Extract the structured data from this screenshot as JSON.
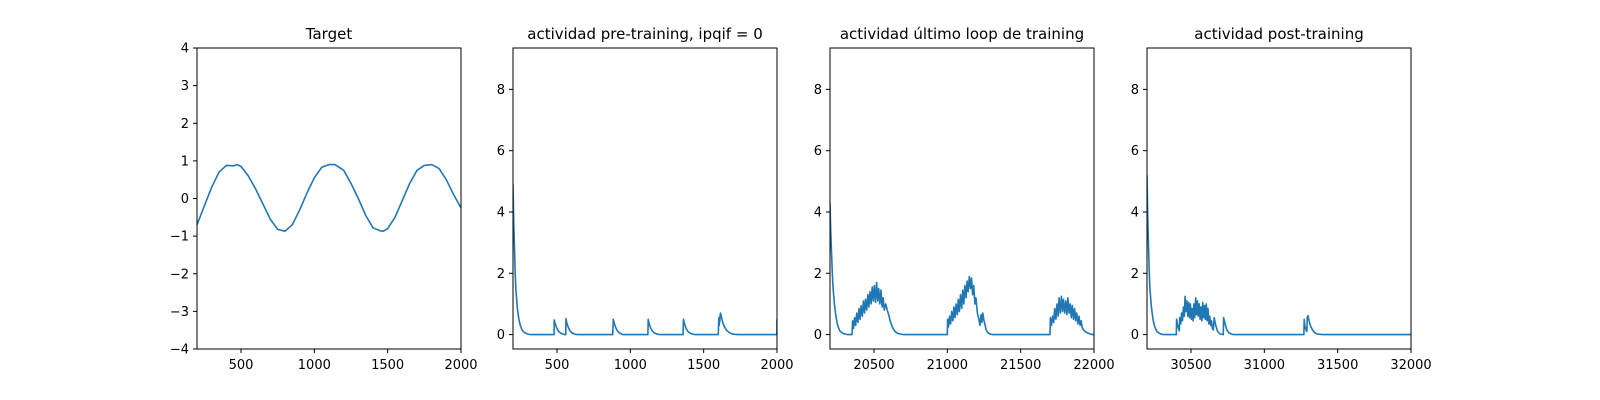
{
  "chart_data": [
    {
      "type": "line",
      "title": "Target",
      "xlabel": "",
      "ylabel": "",
      "xlim": [
        200,
        2000
      ],
      "ylim": [
        -4,
        4
      ],
      "xticks": [
        500,
        1000,
        1500,
        2000
      ],
      "yticks": [
        -4,
        -3,
        -2,
        -1,
        0,
        1,
        2,
        3,
        4
      ],
      "grid": false,
      "series": [
        {
          "color": "#1f77b4",
          "x": [
            200,
            250,
            300,
            350,
            400,
            450,
            475,
            500,
            550,
            600,
            650,
            700,
            750,
            800,
            850,
            900,
            950,
            1000,
            1050,
            1100,
            1140,
            1200,
            1250,
            1300,
            1350,
            1400,
            1450,
            1470,
            1500,
            1550,
            1600,
            1650,
            1700,
            1750,
            1800,
            1850,
            1900,
            1950,
            2000
          ],
          "y": [
            -0.7,
            -0.2,
            0.3,
            0.7,
            0.88,
            0.87,
            0.9,
            0.85,
            0.6,
            0.25,
            -0.15,
            -0.55,
            -0.82,
            -0.87,
            -0.7,
            -0.3,
            0.15,
            0.55,
            0.83,
            0.9,
            0.9,
            0.75,
            0.4,
            0.0,
            -0.45,
            -0.78,
            -0.86,
            -0.87,
            -0.8,
            -0.5,
            -0.05,
            0.4,
            0.75,
            0.88,
            0.9,
            0.8,
            0.5,
            0.1,
            -0.25
          ]
        }
      ]
    },
    {
      "type": "line",
      "title": "actividad pre-training, ipqif = 0",
      "xlabel": "",
      "ylabel": "",
      "xlim": [
        200,
        2000
      ],
      "ylim": [
        -0.47,
        9.35
      ],
      "xticks": [
        500,
        1000,
        1500,
        2000
      ],
      "yticks": [
        0,
        2,
        4,
        6,
        8
      ],
      "grid": false,
      "series": [
        {
          "color": "#1f77b4",
          "x": [
            200,
            205,
            210,
            215,
            220,
            230,
            240,
            250,
            260,
            270,
            285,
            300,
            320,
            350,
            480,
            481,
            485,
            495,
            505,
            515,
            530,
            545,
            550,
            560,
            561,
            565,
            575,
            585,
            600,
            620,
            640,
            880,
            884,
            888,
            895,
            905,
            915,
            930,
            950,
            1120,
            1122,
            1125,
            1132,
            1140,
            1150,
            1160,
            1175,
            1200,
            1360,
            1362,
            1366,
            1373,
            1380,
            1390,
            1400,
            1415,
            1440,
            1600,
            1603,
            1605,
            1610,
            1612,
            1615,
            1622,
            1630,
            1640,
            1655,
            1670,
            1690,
            1710,
            1740,
            1999,
            2000
          ],
          "y": [
            4.9,
            3.7,
            2.8,
            2.0,
            1.45,
            0.85,
            0.5,
            0.3,
            0.17,
            0.1,
            0.05,
            0.02,
            0.0,
            0.0,
            0.0,
            0.48,
            0.4,
            0.25,
            0.15,
            0.08,
            0.04,
            0.01,
            0.0,
            0.0,
            0.52,
            0.42,
            0.26,
            0.15,
            0.06,
            0.02,
            0.0,
            0.0,
            0.5,
            0.42,
            0.3,
            0.18,
            0.1,
            0.04,
            0.0,
            0.0,
            0.5,
            0.42,
            0.3,
            0.2,
            0.12,
            0.07,
            0.03,
            0.0,
            0.0,
            0.5,
            0.42,
            0.3,
            0.2,
            0.12,
            0.07,
            0.03,
            0.0,
            0.0,
            0.55,
            0.3,
            0.45,
            0.62,
            0.7,
            0.55,
            0.4,
            0.27,
            0.15,
            0.08,
            0.03,
            0.01,
            0.0,
            0.0,
            0.5
          ]
        }
      ]
    },
    {
      "type": "line",
      "title": "actividad último loop de training",
      "xlabel": "",
      "ylabel": "",
      "xlim": [
        20200,
        22000
      ],
      "ylim": [
        -0.47,
        9.35
      ],
      "xticks": [
        20500,
        21000,
        21500,
        22000
      ],
      "yticks": [
        0,
        2,
        4,
        6,
        8
      ],
      "grid": false,
      "series": [
        {
          "color": "#1f77b4",
          "x": [
            20200,
            20205,
            20210,
            20215,
            20220,
            20230,
            20240,
            20250,
            20260,
            20270,
            20285,
            20300,
            20320,
            20340,
            20350,
            20354,
            20360,
            20368,
            20375,
            20382,
            20390,
            20398,
            20405,
            20412,
            20420,
            20428,
            20435,
            20442,
            20450,
            20458,
            20465,
            20472,
            20480,
            20488,
            20495,
            20502,
            20510,
            20518,
            20525,
            20532,
            20540,
            20548,
            20555,
            20562,
            20570,
            20580,
            20590,
            20600,
            20610,
            20625,
            20640,
            20660,
            20700,
            20990,
            21000,
            21002,
            21008,
            21015,
            21022,
            21030,
            21038,
            21045,
            21052,
            21060,
            21068,
            21075,
            21082,
            21090,
            21098,
            21105,
            21112,
            21120,
            21128,
            21135,
            21142,
            21150,
            21158,
            21165,
            21172,
            21180,
            21188,
            21195,
            21205,
            21215,
            21222,
            21230,
            21236,
            21242,
            21250,
            21258,
            21265,
            21275,
            21290,
            21310,
            21350,
            21690,
            21700,
            21703,
            21710,
            21718,
            21725,
            21732,
            21740,
            21748,
            21755,
            21762,
            21770,
            21778,
            21785,
            21792,
            21800,
            21808,
            21815,
            21822,
            21830,
            21838,
            21845,
            21852,
            21860,
            21868,
            21875,
            21882,
            21890,
            21898,
            21905,
            21912,
            21920,
            21930,
            21945,
            21960,
            21975,
            21990,
            22000
          ],
          "y": [
            4.3,
            3.4,
            2.7,
            2.1,
            1.6,
            1.0,
            0.6,
            0.35,
            0.2,
            0.1,
            0.05,
            0.02,
            0.0,
            0.0,
            0.0,
            0.45,
            0.2,
            0.55,
            0.3,
            0.7,
            0.4,
            0.85,
            0.5,
            0.95,
            0.6,
            1.1,
            0.7,
            1.15,
            0.8,
            1.3,
            0.9,
            1.4,
            1.0,
            1.55,
            1.1,
            1.6,
            1.05,
            1.7,
            1.1,
            1.5,
            1.0,
            1.45,
            0.9,
            1.2,
            0.8,
            1.0,
            0.8,
            0.65,
            0.45,
            0.25,
            0.12,
            0.04,
            0.0,
            0.0,
            0.0,
            0.5,
            0.25,
            0.6,
            0.35,
            0.75,
            0.45,
            0.9,
            0.55,
            1.0,
            0.65,
            1.15,
            0.75,
            1.3,
            0.85,
            1.45,
            1.0,
            1.6,
            1.2,
            1.75,
            1.4,
            1.9,
            1.5,
            1.85,
            1.3,
            1.6,
            1.0,
            1.2,
            0.7,
            0.5,
            0.3,
            0.65,
            0.4,
            0.7,
            0.45,
            0.3,
            0.15,
            0.07,
            0.02,
            0.0,
            0.0,
            0.0,
            0.0,
            0.55,
            0.3,
            0.6,
            0.4,
            0.85,
            0.5,
            1.0,
            0.6,
            1.2,
            0.7,
            1.25,
            0.75,
            1.15,
            0.7,
            1.1,
            0.65,
            1.2,
            0.7,
            1.0,
            0.55,
            0.95,
            0.5,
            0.85,
            0.45,
            0.7,
            0.35,
            0.6,
            0.3,
            0.45,
            0.22,
            0.15,
            0.08,
            0.05,
            0.02,
            0.0,
            0.0
          ]
        }
      ]
    },
    {
      "type": "line",
      "title": "actividad post-training",
      "xlabel": "",
      "ylabel": "",
      "xlim": [
        30200,
        32000
      ],
      "ylim": [
        -0.47,
        9.35
      ],
      "xticks": [
        30500,
        31000,
        31500,
        32000
      ],
      "yticks": [
        0,
        2,
        4,
        6,
        8
      ],
      "grid": false,
      "series": [
        {
          "color": "#1f77b4",
          "x": [
            30200,
            30205,
            30210,
            30215,
            30220,
            30230,
            30240,
            30250,
            30260,
            30270,
            30285,
            30300,
            30320,
            30340,
            30400,
            30402,
            30407,
            30414,
            30420,
            30423,
            30430,
            30436,
            30442,
            30448,
            30454,
            30460,
            30466,
            30472,
            30478,
            30484,
            30490,
            30496,
            30502,
            30508,
            30514,
            30520,
            30526,
            30532,
            30538,
            30544,
            30550,
            30556,
            30562,
            30568,
            30574,
            30580,
            30586,
            30592,
            30598,
            30604,
            30610,
            30616,
            30622,
            30628,
            30634,
            30640,
            30646,
            30652,
            30658,
            30664,
            30672,
            30680,
            30690,
            30700,
            30720,
            30722,
            30728,
            30735,
            30745,
            30760,
            30780,
            30800,
            31270,
            31272,
            31276,
            31282,
            31290,
            31292,
            31297,
            31305,
            31315,
            31330,
            31345,
            31360,
            31380,
            31400,
            32000
          ],
          "y": [
            5.2,
            3.9,
            2.9,
            2.1,
            1.5,
            0.9,
            0.52,
            0.3,
            0.17,
            0.09,
            0.04,
            0.01,
            0.0,
            0.0,
            0.0,
            0.5,
            0.35,
            0.2,
            0.12,
            0.55,
            0.35,
            0.7,
            0.45,
            0.9,
            0.6,
            1.25,
            0.75,
            1.1,
            0.6,
            1.05,
            0.55,
            1.0,
            0.5,
            0.85,
            0.45,
            1.0,
            0.55,
            1.2,
            0.65,
            1.1,
            0.6,
            1.0,
            0.5,
            0.9,
            0.45,
            1.05,
            0.55,
            0.95,
            0.5,
            1.0,
            0.45,
            0.85,
            0.35,
            0.6,
            0.3,
            0.45,
            0.2,
            0.15,
            0.55,
            0.4,
            0.25,
            0.12,
            0.06,
            0.02,
            0.0,
            0.55,
            0.45,
            0.3,
            0.15,
            0.05,
            0.01,
            0.0,
            0.0,
            0.5,
            0.3,
            0.18,
            0.1,
            0.55,
            0.62,
            0.45,
            0.28,
            0.14,
            0.06,
            0.02,
            0.01,
            0.0,
            0.0
          ]
        }
      ]
    }
  ]
}
